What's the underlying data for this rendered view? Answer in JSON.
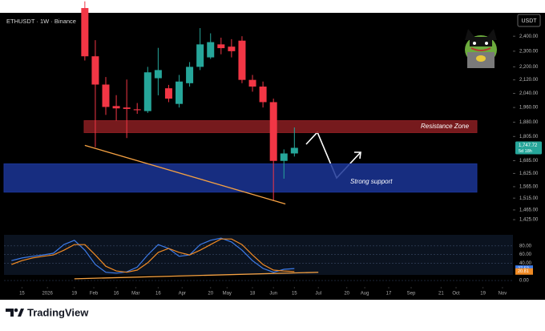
{
  "chart_data": {
    "type": "candlestick",
    "title": "ETHUSDT · 1W · Binance",
    "currency": "USDT",
    "log_scale": true,
    "grid": false,
    "up_color": "#26a69a",
    "down_color": "#f23645",
    "xlim": [
      -12,
      328
    ],
    "xticks": [
      {
        "value": 0,
        "label": "15"
      },
      {
        "value": 17,
        "label": "2026"
      },
      {
        "value": 35,
        "label": "19"
      },
      {
        "value": 48,
        "label": "Feb"
      },
      {
        "value": 63,
        "label": "16"
      },
      {
        "value": 76,
        "label": "Mar"
      },
      {
        "value": 91,
        "label": "16"
      },
      {
        "value": 107,
        "label": "Apr"
      },
      {
        "value": 126,
        "label": "20"
      },
      {
        "value": 137,
        "label": "May"
      },
      {
        "value": 154,
        "label": "18"
      },
      {
        "value": 168,
        "label": "Jun"
      },
      {
        "value": 182,
        "label": "15"
      },
      {
        "value": 198,
        "label": "Jul"
      },
      {
        "value": 217,
        "label": "20"
      },
      {
        "value": 229,
        "label": "Aug"
      },
      {
        "value": 245,
        "label": "17"
      },
      {
        "value": 260,
        "label": "Sep"
      },
      {
        "value": 280,
        "label": "21"
      },
      {
        "value": 290,
        "label": "Oct"
      },
      {
        "value": 308,
        "label": "19"
      },
      {
        "value": 321,
        "label": "Nov"
      }
    ],
    "ylim": [
      1390,
      2565
    ],
    "yticks": [
      {
        "value": 2400,
        "label": "2,400.00"
      },
      {
        "value": 2300,
        "label": "2,300.00"
      },
      {
        "value": 2200,
        "label": "2,200.00"
      },
      {
        "value": 2120,
        "label": "2,120.00"
      },
      {
        "value": 2040,
        "label": "2,040.00"
      },
      {
        "value": 1960,
        "label": "1,960.00"
      },
      {
        "value": 1880,
        "label": "1,880.00"
      },
      {
        "value": 1805,
        "label": "1,805.00"
      },
      {
        "value": 1685,
        "label": "1,685.00"
      },
      {
        "value": 1625,
        "label": "1,625.00"
      },
      {
        "value": 1565,
        "label": "1,565.00"
      },
      {
        "value": 1515,
        "label": "1,515.00"
      },
      {
        "value": 1465,
        "label": "1,465.00"
      },
      {
        "value": 1425,
        "label": "1,425.00"
      }
    ],
    "x": [
      42,
      49,
      56,
      63,
      70,
      77,
      84,
      91,
      98,
      105,
      112,
      119,
      126,
      133,
      140,
      147,
      154,
      161,
      168,
      175,
      182
    ],
    "open": [
      2600,
      2267,
      2092,
      1968,
      1960,
      1950,
      1940,
      2130,
      2070,
      1980,
      2100,
      2200,
      2260,
      2345,
      2330,
      2370,
      2120,
      2080,
      1990,
      1684,
      1720
    ],
    "high": [
      2650,
      2373,
      2137,
      2030,
      2122,
      1985,
      2200,
      2322,
      2090,
      2150,
      2230,
      2456,
      2420,
      2390,
      2380,
      2400,
      2150,
      2110,
      2010,
      1740,
      1852
    ],
    "low": [
      2240,
      1751,
      1919,
      1888,
      1797,
      1925,
      1930,
      2029,
      1990,
      1960,
      2080,
      2180,
      2250,
      2280,
      2260,
      2100,
      2050,
      1960,
      1503,
      1601,
      1705
    ],
    "close": [
      2267,
      2092,
      1963,
      1955,
      1952,
      1945,
      2166,
      2180,
      2010,
      2110,
      2200,
      2345,
      2360,
      2320,
      2300,
      2120,
      2080,
      1990,
      1684,
      1720,
      1747.72
    ],
    "price_tag": {
      "label": "1,747.72",
      "countdown": "5d 18h",
      "color": "#26a69a"
    },
    "zones": [
      {
        "label": "Resistance Zone",
        "low": 1825,
        "high": 1888,
        "color": "#8b1e22"
      },
      {
        "label": "Strong support",
        "low": 1541,
        "high": 1670,
        "color": "#1b3596"
      }
    ],
    "trendlines": [
      {
        "color": "#f5a142",
        "x": [
          42,
          176
        ],
        "values": [
          1760,
          1490
        ]
      }
    ],
    "oscillator": {
      "ylim": [
        0,
        100
      ],
      "yticks": [
        {
          "value": 80,
          "label": "80.00"
        },
        {
          "value": 60,
          "label": "60.00"
        },
        {
          "value": 40,
          "label": "40.00"
        },
        {
          "value": 0,
          "label": "0.00"
        }
      ],
      "x": [
        -7,
        0,
        7,
        14,
        21,
        28,
        35,
        42,
        49,
        56,
        63,
        70,
        77,
        84,
        91,
        98,
        105,
        112,
        119,
        126,
        133,
        140,
        147,
        154,
        161,
        168,
        175,
        182
      ],
      "series": [
        {
          "color": "#3d7be8",
          "last_label": "27.52",
          "values": [
            46,
            52,
            56,
            59,
            63,
            83,
            93,
            70,
            37,
            19,
            17,
            20,
            31,
            59,
            83,
            74,
            56,
            59,
            83,
            93,
            98,
            89,
            70,
            46,
            28,
            19,
            26,
            27.52
          ]
        },
        {
          "color": "#f08a24",
          "last_label": "20.81",
          "values": [
            37,
            46,
            52,
            56,
            59,
            70,
            83,
            83,
            59,
            33,
            22,
            19,
            24,
            41,
            65,
            74,
            65,
            59,
            70,
            83,
            96,
            96,
            83,
            59,
            37,
            24,
            22,
            20.81
          ]
        }
      ],
      "trendlines": [
        {
          "color": "#f5a142",
          "x": [
            35,
            198
          ],
          "values": [
            4,
            19
          ]
        }
      ]
    }
  },
  "brand": "TradingView"
}
